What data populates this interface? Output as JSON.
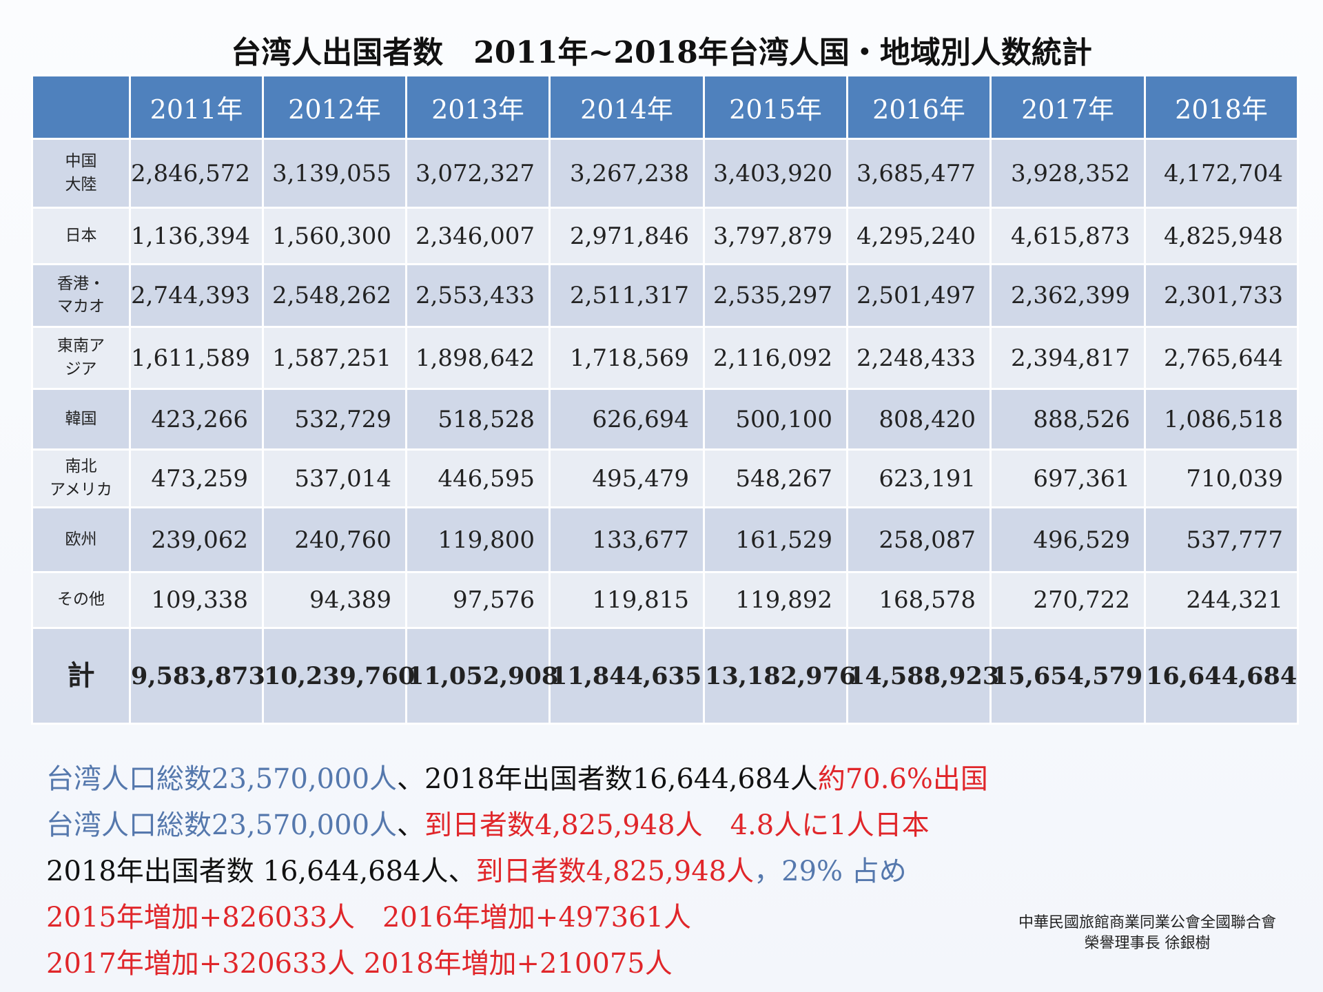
{
  "title": "台湾人出国者数　2011年~2018年台湾人国・地域別人数統計",
  "table": {
    "header": [
      "2011年",
      "2012年",
      "2013年",
      "2014年",
      "2015年",
      "2016年",
      "2017年",
      "2018年"
    ],
    "rows": [
      [
        "中国\n大陸",
        "2,846,572",
        "3,139,055",
        "3,072,327",
        "3,267,238",
        "3,403,920",
        "3,685,477",
        "3,928,352",
        "4,172,704"
      ],
      [
        "日本",
        "1,136,394",
        "1,560,300",
        "2,346,007",
        "2,971,846",
        "3,797,879",
        "4,295,240",
        "4,615,873",
        "4,825,948"
      ],
      [
        "香港・\nマカオ",
        "2,744,393",
        "2,548,262",
        "2,553,433",
        "2,511,317",
        "2,535,297",
        "2,501,497",
        "2,362,399",
        "2,301,733"
      ],
      [
        "東南ア\nジア",
        "1,611,589",
        "1,587,251",
        "1,898,642",
        "1,718,569",
        "2,116,092",
        "2,248,433",
        "2,394,817",
        "2,765,644"
      ],
      [
        "韓国",
        "423,266",
        "532,729",
        "518,528",
        "626,694",
        "500,100",
        "808,420",
        "888,526",
        "1,086,518"
      ],
      [
        "南北\nアメリカ",
        "473,259",
        "537,014",
        "446,595",
        "495,479",
        "548,267",
        "623,191",
        "697,361",
        "710,039"
      ],
      [
        "欧州",
        "239,062",
        "240,760",
        "119,800",
        "133,677",
        "161,529",
        "258,087",
        "496,529",
        "537,777"
      ],
      [
        "その他",
        "109,338",
        "94,389",
        "97,576",
        "119,815",
        "119,892",
        "168,578",
        "270,722",
        "244,321"
      ],
      [
        "計",
        "9,583,873",
        "10,239,760",
        "11,052,908",
        "11,844,635",
        "13,182,976",
        "14,588,923",
        "15,654,579",
        "16,644,684"
      ]
    ]
  },
  "notes": [
    [
      "台湾人口総数23,570,000人",
      "、2018年出国者数16,644,684人",
      "約70.6%出国"
    ],
    [
      "台湾人口総数23,570,000人",
      "、",
      "到日者数4,825,948人　4.8人に1人日本"
    ],
    [
      "2018年出国者数 16,644,684人、",
      "到日者数4,825,948人",
      "，29% 占め"
    ],
    [
      "2015年増加+826033人　2016年増加+497361人"
    ],
    [
      "2017年増加+320633人 2018年増加+210075人"
    ]
  ],
  "footer": [
    "中華民國旅館商業同業公會全國聯合會",
    "榮譽理事長 徐銀樹"
  ]
}
